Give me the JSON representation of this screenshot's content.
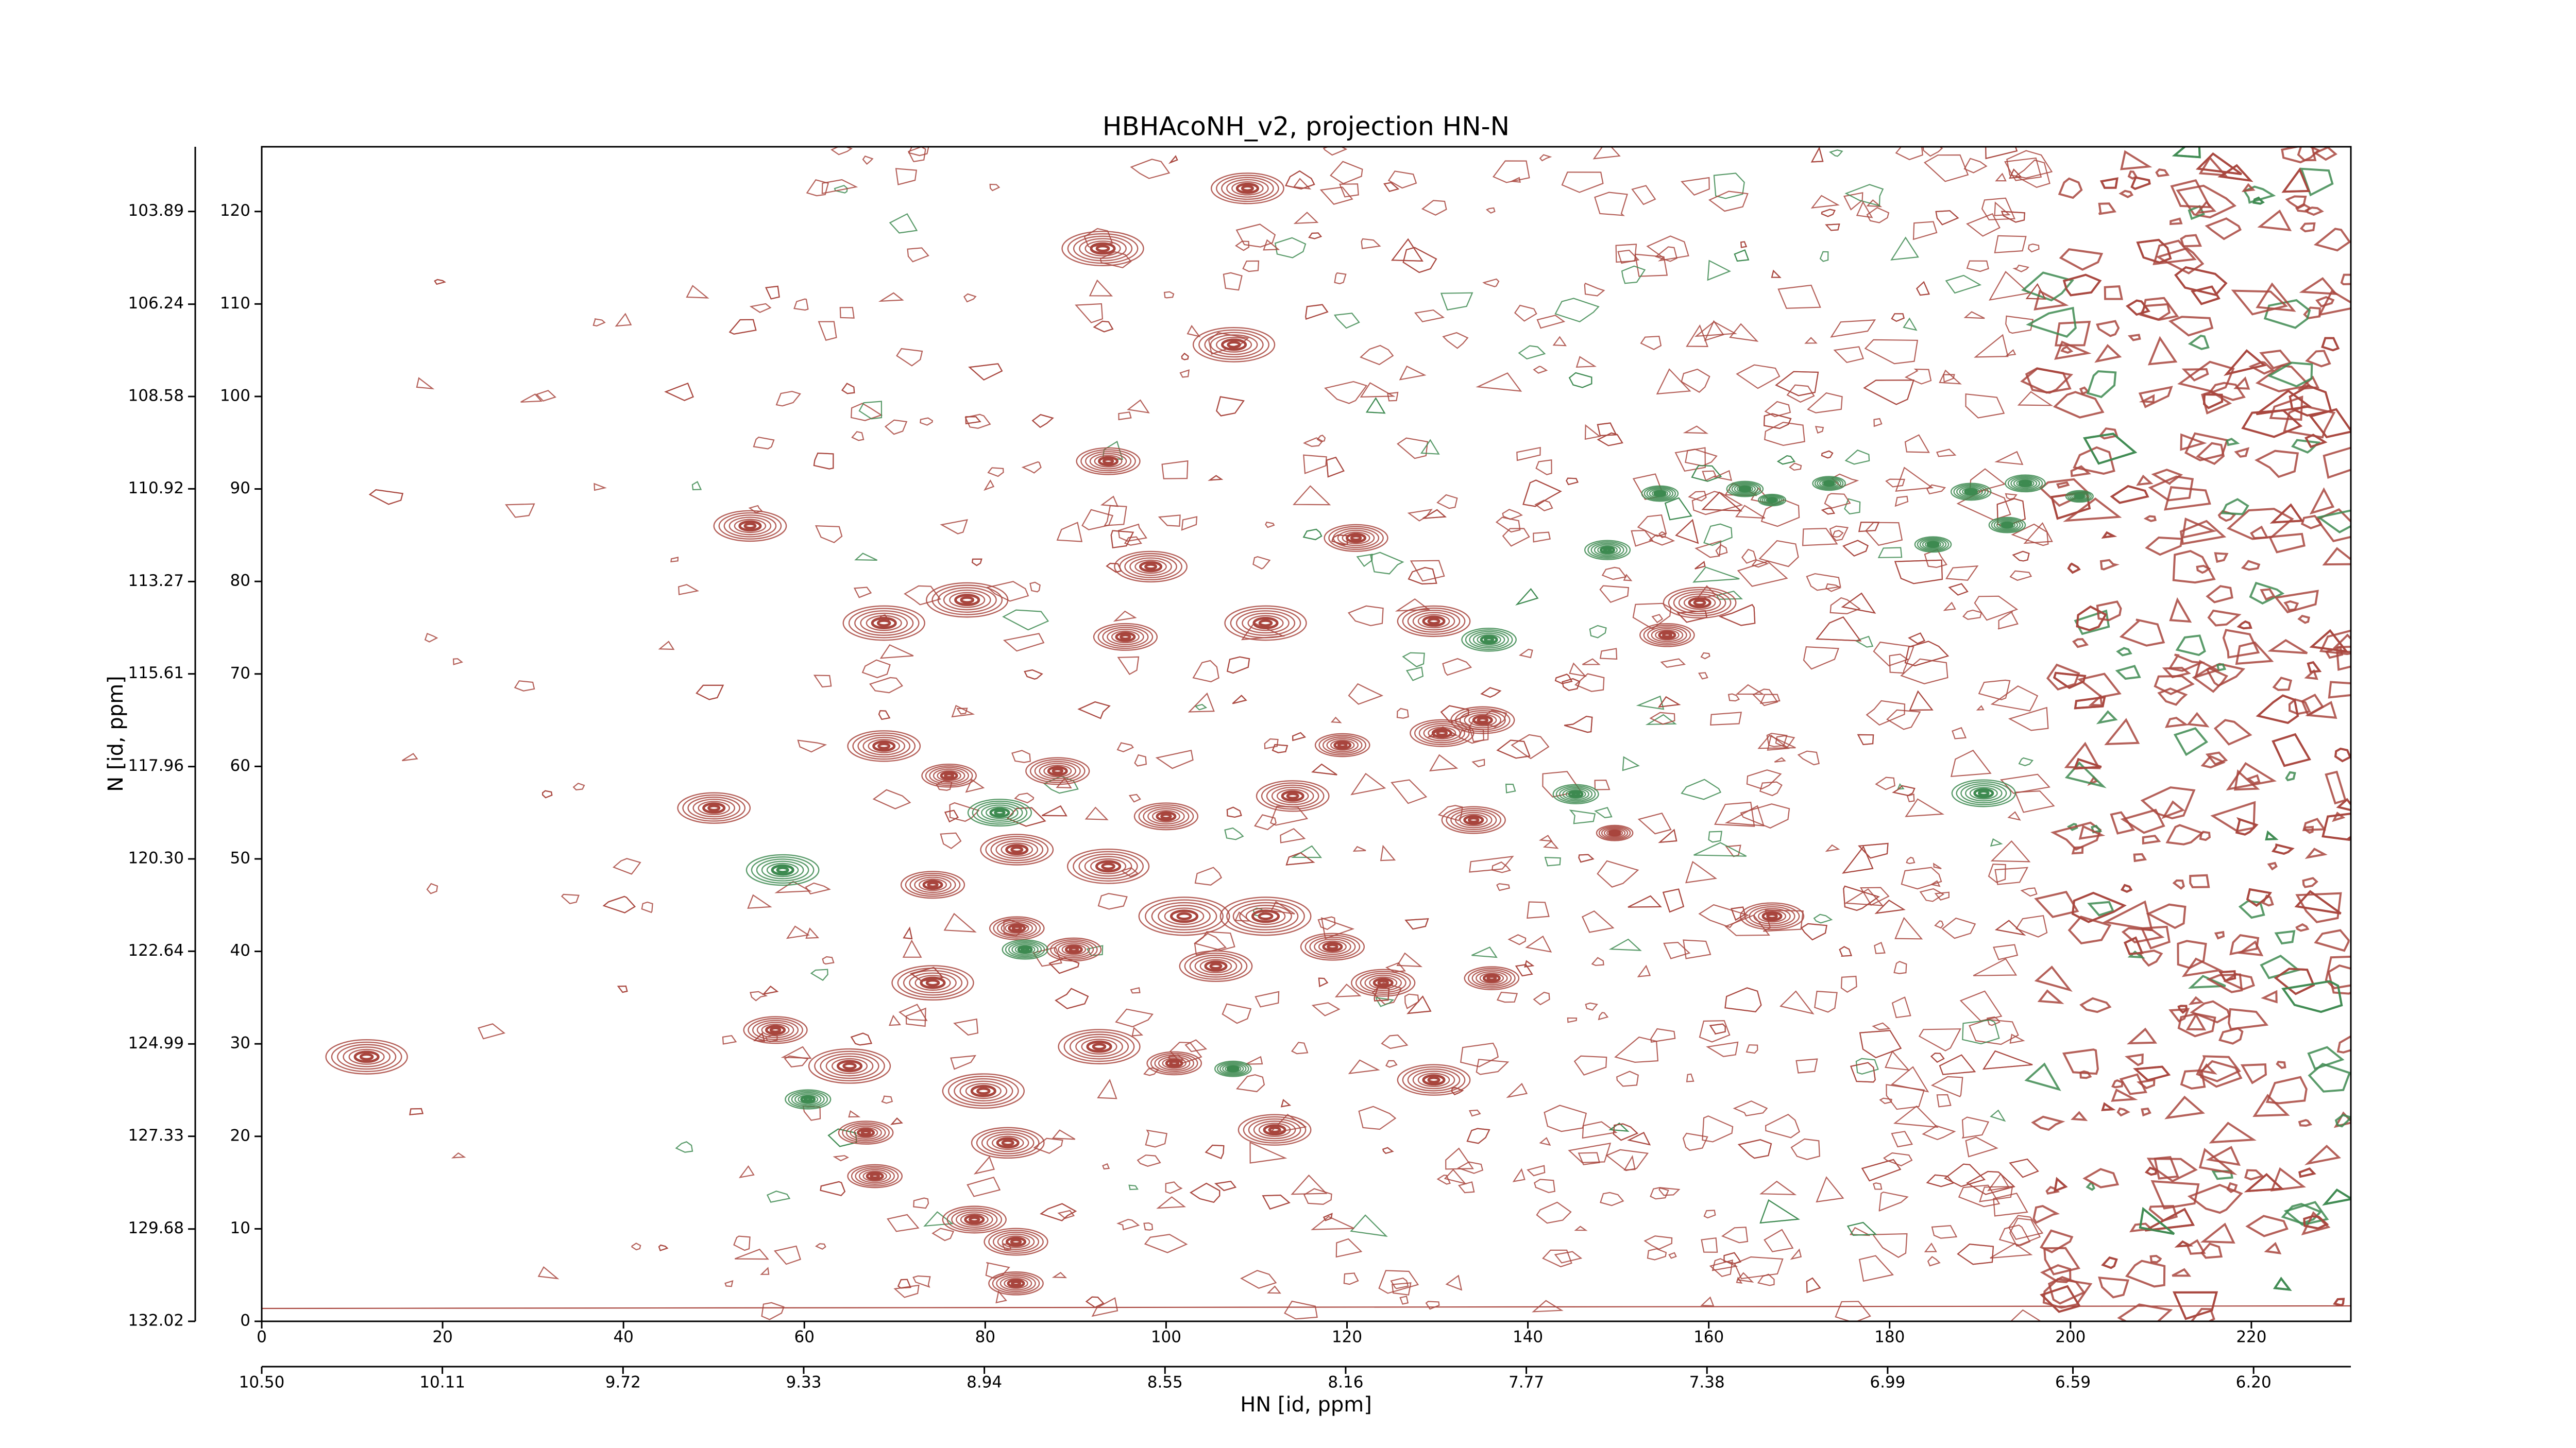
{
  "chart_data": {
    "type": "contour",
    "title": "HBHAcoNH_v2, projection HN-N",
    "xlabel": "HN [id, ppm]",
    "ylabel": "N [id, ppm]",
    "xlim": [
      0,
      231
    ],
    "xticks": [
      0,
      20,
      40,
      60,
      80,
      100,
      120,
      140,
      160,
      180,
      200,
      220
    ],
    "ylim": [
      0,
      127
    ],
    "yticks": [
      0,
      10,
      20,
      30,
      40,
      50,
      60,
      70,
      80,
      90,
      100,
      110,
      120
    ],
    "x2lim": [
      10.5,
      5.99
    ],
    "x2ticks": [
      {
        "value": 10.5,
        "label": "10.50"
      },
      10.11,
      9.72,
      9.33,
      8.94,
      8.55,
      8.16,
      7.77,
      7.38,
      6.99,
      6.59,
      {
        "value": 6.2,
        "label": "6.20"
      }
    ],
    "y2lim": [
      132.02,
      102.25
    ],
    "y2ticks": [
      103.89,
      106.24,
      108.58,
      110.92,
      113.27,
      115.61,
      117.96,
      {
        "value": 120.3,
        "label": "120.30"
      },
      122.64,
      124.99,
      127.33,
      129.68,
      132.02
    ],
    "series": [
      {
        "color": "#a8453d",
        "x": [
          109,
          93,
          107.5,
          93.6,
          54,
          121,
          98.3,
          68.8,
          78,
          95.5,
          111,
          129.6,
          159,
          155.4,
          68.8,
          76,
          88,
          50,
          119.5,
          130.5,
          135,
          134,
          149.6,
          167,
          100,
          114,
          83.5,
          93.6,
          102,
          111,
          118.4,
          124,
          136,
          74.2,
          83.5,
          89.8,
          56.8,
          65,
          92.6,
          100.9,
          79.8,
          82.5,
          66.8,
          67.8,
          78.8,
          83.4,
          83.4,
          129.6,
          112,
          11.6,
          74.2,
          105.5
        ],
        "y": [
          122.5,
          116,
          105.6,
          93,
          86,
          84.7,
          81.6,
          75.5,
          78,
          74,
          75.5,
          75.7,
          77.7,
          74.2,
          62.2,
          59,
          59.5,
          55.5,
          62.3,
          63.6,
          65,
          54.2,
          52.8,
          43.8,
          54.6,
          56.8,
          51,
          49.2,
          43.8,
          43.8,
          40.5,
          36.6,
          37.1,
          36.6,
          42.5,
          40.2,
          31.5,
          27.6,
          29.7,
          27.9,
          24.9,
          19.3,
          20.4,
          15.7,
          11,
          8.6,
          4.1,
          26.1,
          20.7,
          28.6,
          47.2,
          38.4
        ],
        "width": [
          4,
          4.5,
          4.5,
          3.5,
          4,
          3.5,
          4,
          4.5,
          4.5,
          3.5,
          4.5,
          4,
          4,
          3,
          4,
          3,
          3.5,
          4,
          3,
          3.5,
          3.5,
          3.5,
          2,
          3.5,
          3.5,
          4,
          4,
          4.5,
          5,
          5,
          3.5,
          3.5,
          3,
          4.5,
          3,
          3,
          3.5,
          4.5,
          4.5,
          3,
          4.5,
          4,
          3,
          3,
          3.5,
          3.5,
          3,
          4,
          4,
          4.5,
          3.5,
          4
        ]
      },
      {
        "color": "#3d8a50",
        "x": [
          57.6,
          81.6,
          84.4,
          60.4,
          135.7,
          145.3,
          148.8,
          154.6,
          164,
          167,
          173.3,
          184.8,
          189,
          195,
          193,
          201,
          190.4,
          107.4
        ],
        "y": [
          48.8,
          55,
          40.2,
          24,
          73.7,
          57,
          83.4,
          89.5,
          90,
          88.8,
          90.6,
          84,
          89.7,
          90.6,
          86.1,
          89.2,
          57.1,
          27.3
        ],
        "width": [
          4,
          3.5,
          2.5,
          2.5,
          3,
          2.5,
          2.5,
          2,
          2,
          1.5,
          1.8,
          2,
          2.2,
          2.2,
          2,
          1.5,
          3.5,
          2
        ]
      }
    ]
  }
}
